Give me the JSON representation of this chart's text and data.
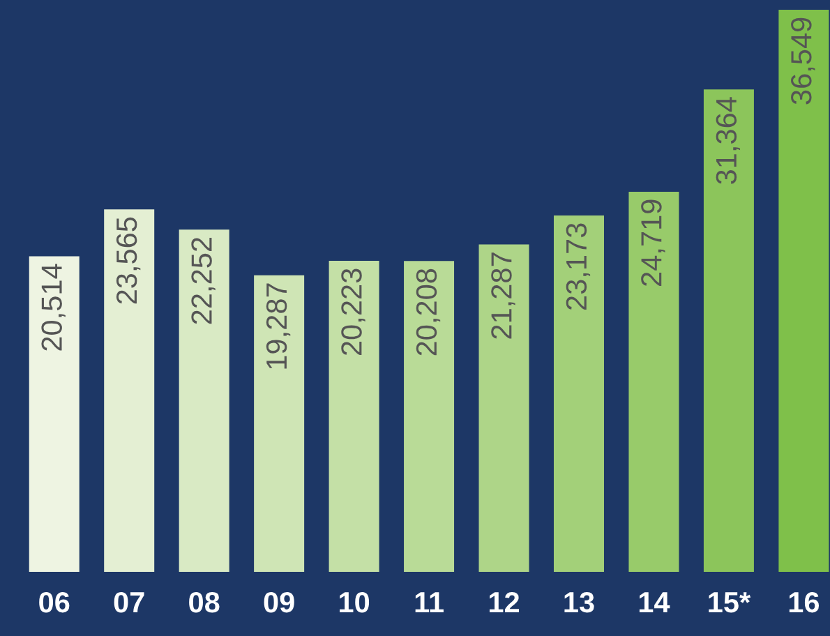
{
  "chart_data": {
    "type": "bar",
    "categories": [
      "06",
      "07",
      "08",
      "09",
      "10",
      "11",
      "12",
      "13",
      "14",
      "15*",
      "16"
    ],
    "values": [
      20514,
      23565,
      22252,
      19287,
      20223,
      20208,
      21287,
      23173,
      24719,
      31364,
      36549
    ],
    "colors": [
      "#eef4e2",
      "#e4efd3",
      "#d9eac4",
      "#cfe5b5",
      "#c4e0a6",
      "#b9db97",
      "#aed588",
      "#a3d079",
      "#98cb6a",
      "#8cc55b",
      "#7fc04a"
    ],
    "value_labels": [
      "20,514",
      "23,565",
      "22,252",
      "19,287",
      "20,223",
      "20,208",
      "21,287",
      "23,173",
      "24,719",
      "31,364",
      "36,549"
    ],
    "grid": false,
    "legend": false
  }
}
